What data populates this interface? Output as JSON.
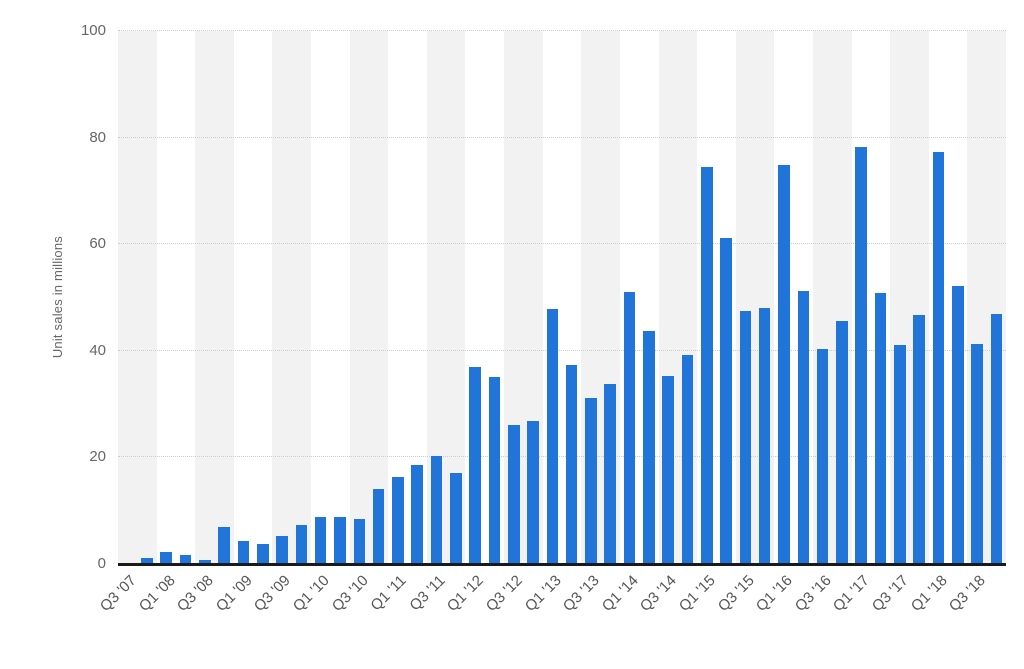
{
  "chart_data": {
    "type": "bar",
    "title": "",
    "xlabel": "",
    "ylabel": "Unit sales in millions",
    "ylim": [
      0,
      100
    ],
    "yticks": [
      0,
      20,
      40,
      60,
      80,
      100
    ],
    "x_tick_label_every": 2,
    "grid": "horizontal-dotted",
    "legend_position": "none",
    "categories": [
      "Q3 '07",
      "Q4 '07",
      "Q1 '08",
      "Q2 '08",
      "Q3 '08",
      "Q4 '08",
      "Q1 '09",
      "Q2 '09",
      "Q3 '09",
      "Q4 '09",
      "Q1 '10",
      "Q2 '10",
      "Q3 '10",
      "Q4 '10",
      "Q1 '11",
      "Q2 '11",
      "Q3 '11",
      "Q4 '11",
      "Q1 '12",
      "Q2 '12",
      "Q3 '12",
      "Q4 '12",
      "Q1 '13",
      "Q2 '13",
      "Q3 '13",
      "Q4 '13",
      "Q1 '14",
      "Q2 '14",
      "Q3 '14",
      "Q4 '14",
      "Q1 '15",
      "Q2 '15",
      "Q3 '15",
      "Q4 '15",
      "Q1 '16",
      "Q2 '16",
      "Q3 '16",
      "Q4 '16",
      "Q1 '17",
      "Q2 '17",
      "Q3 '17",
      "Q4 '17",
      "Q1 '18",
      "Q2 '18",
      "Q3 '18",
      "Q4 '18"
    ],
    "values": [
      0.27,
      1.12,
      2.32,
      1.7,
      0.72,
      6.89,
      4.36,
      3.79,
      5.21,
      7.37,
      8.74,
      8.75,
      8.4,
      14.1,
      16.24,
      18.65,
      20.34,
      17.07,
      37.04,
      35.06,
      26.03,
      26.91,
      47.79,
      37.43,
      31.24,
      33.8,
      51.03,
      43.72,
      35.2,
      39.27,
      74.47,
      61.17,
      47.53,
      48.05,
      74.78,
      51.19,
      40.4,
      45.51,
      78.29,
      50.76,
      41.03,
      46.68,
      77.32,
      52.22,
      41.3,
      46.89
    ],
    "visible_x_tick_labels": [
      "Q3 '07",
      "Q1 '08",
      "Q3 '08",
      "Q1 '09",
      "Q3 '09",
      "Q1 '10",
      "Q3 '10",
      "Q1 '11",
      "Q3 '11",
      "Q1 '12",
      "Q3 '12",
      "Q1 '13",
      "Q3 '13",
      "Q1 '14",
      "Q3 '14",
      "Q1 '15",
      "Q3 '15",
      "Q1 '16",
      "Q3 '16",
      "Q1 '17",
      "Q3 '17",
      "Q1 '18",
      "Q3 '18"
    ],
    "colors": {
      "bar": "#2175d8",
      "stripe": "#f2f2f2",
      "gridline": "#cccccc",
      "axis_line": "#1a1a1a",
      "y_tick_label": "#666666",
      "x_tick_label": "#555555",
      "y_axis_title": "#666666",
      "background": "#ffffff"
    }
  }
}
